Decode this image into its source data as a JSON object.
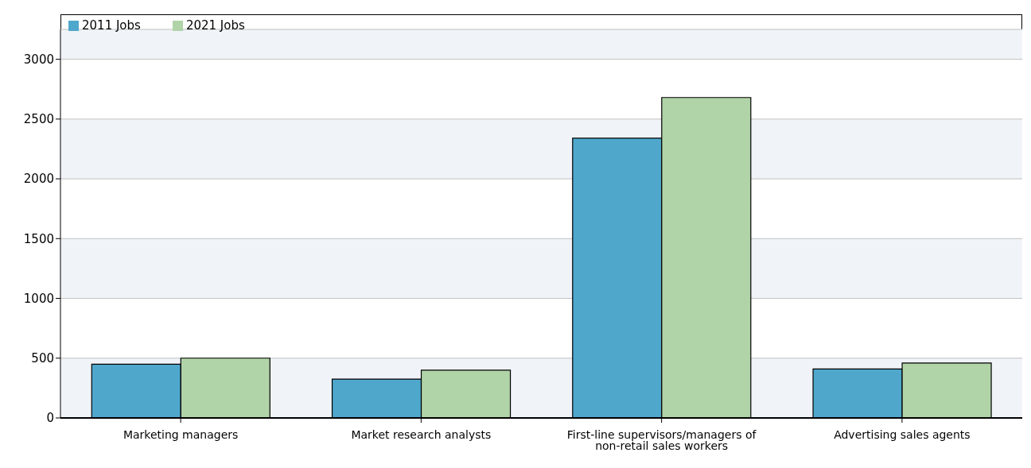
{
  "chart_data": {
    "type": "bar",
    "categories": [
      "Marketing managers",
      "Market research analysts",
      "First-line supervisors/managers of non-retail sales workers",
      "Advertising sales agents"
    ],
    "series": [
      {
        "name": "2011 Jobs",
        "color": "#4fa7cc",
        "values": [
          450,
          325,
          2340,
          410
        ]
      },
      {
        "name": "2021 Jobs",
        "color": "#b0d3a8",
        "values": [
          500,
          400,
          2680,
          460
        ]
      }
    ],
    "ylim": [
      0,
      3250
    ],
    "yticks": [
      0,
      500,
      1000,
      1500,
      2000,
      2500,
      3000
    ],
    "grid": "y",
    "legend": "top left"
  }
}
